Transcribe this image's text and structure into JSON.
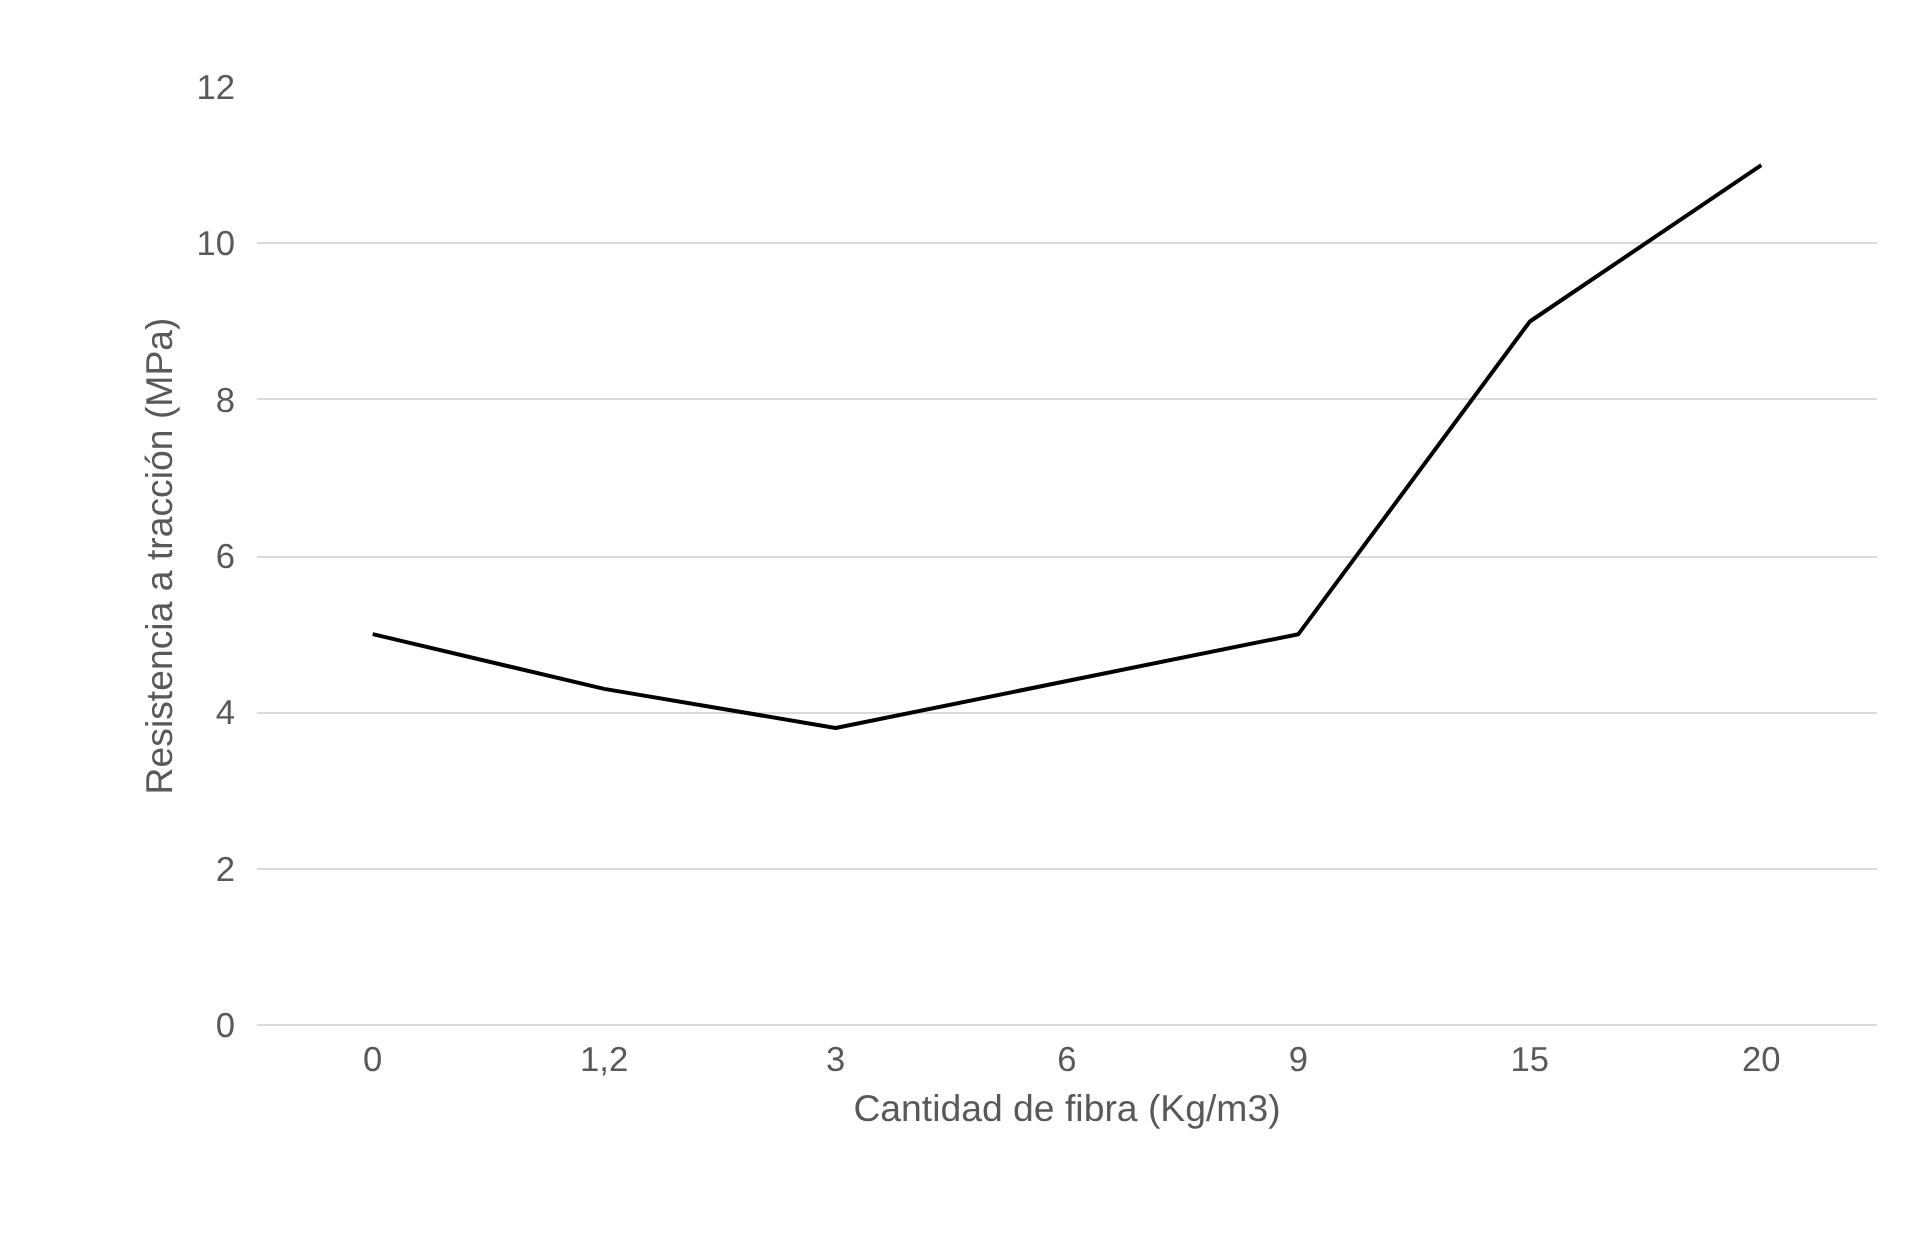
{
  "chart_data": {
    "type": "line",
    "xlabel": "Cantidad de fibra (Kg/m3)",
    "ylabel": "Resistencia a tracción (MPa)",
    "categories": [
      "0",
      "1,2",
      "3",
      "6",
      "9",
      "15",
      "20"
    ],
    "series": [
      {
        "color": "#000000",
        "values": [
          5.0,
          4.3,
          3.8,
          4.4,
          5.0,
          9.0,
          11.0
        ]
      }
    ],
    "ylim": [
      0,
      12
    ],
    "yticks": [
      0,
      2,
      4,
      6,
      8,
      10,
      12
    ],
    "grid": "y",
    "marker": "none",
    "line_style": "solid"
  }
}
